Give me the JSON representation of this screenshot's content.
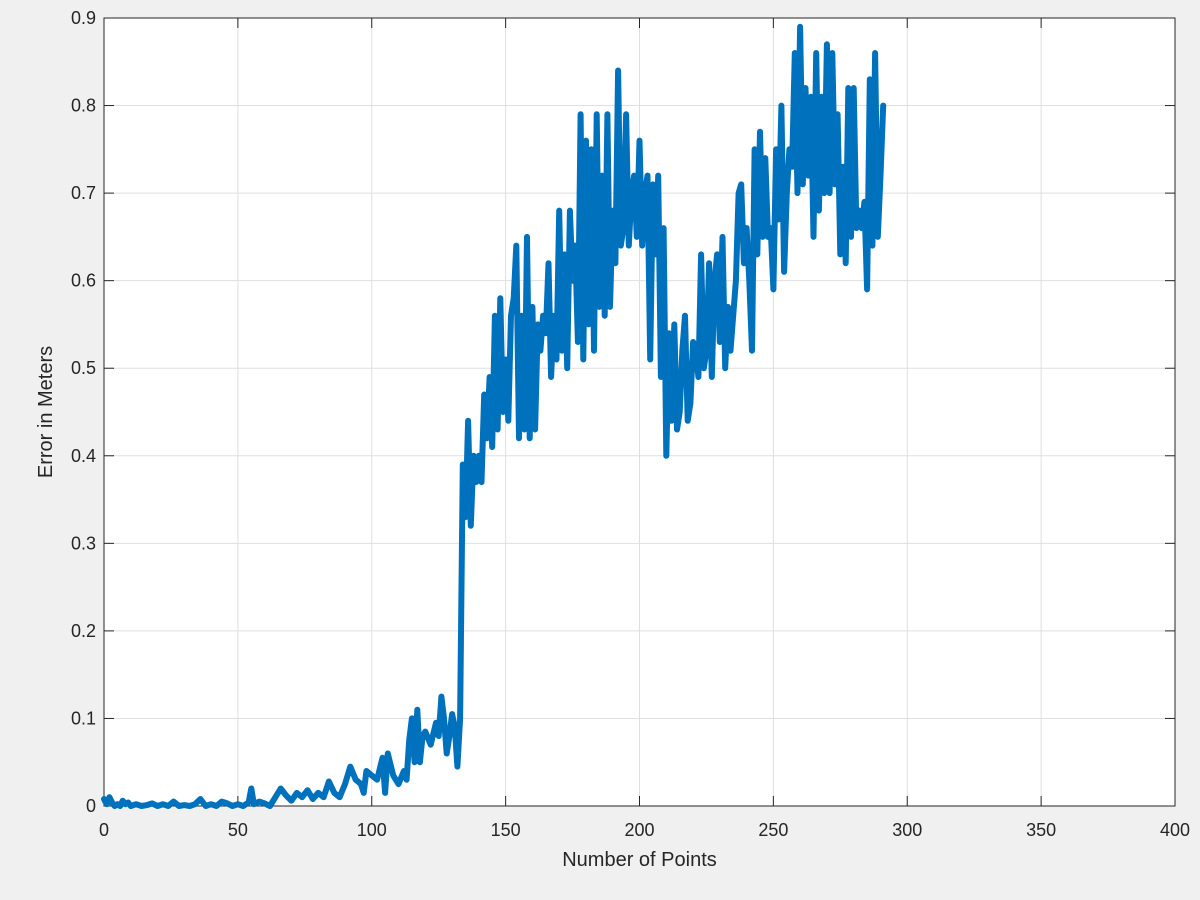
{
  "chart_data": {
    "type": "line",
    "title": "",
    "xlabel": "Number of Points",
    "ylabel": "Error in Meters",
    "xlim": [
      0,
      400
    ],
    "ylim": [
      0,
      0.9
    ],
    "x_ticks": [
      0,
      50,
      100,
      150,
      200,
      250,
      300,
      350,
      400
    ],
    "y_ticks": [
      0,
      0.1,
      0.2,
      0.3,
      0.4,
      0.5,
      0.6,
      0.7,
      0.8,
      0.9
    ],
    "x_tick_labels": [
      "0",
      "50",
      "100",
      "150",
      "200",
      "250",
      "300",
      "350",
      "400"
    ],
    "y_tick_labels": [
      "0",
      "0.1",
      "0.2",
      "0.3",
      "0.4",
      "0.5",
      "0.6",
      "0.7",
      "0.8",
      "0.9"
    ],
    "grid": true,
    "series": [
      {
        "color": "#0072bd",
        "points": [
          [
            0,
            0.008
          ],
          [
            1,
            0.002
          ],
          [
            2,
            0.01
          ],
          [
            3,
            0.004
          ],
          [
            4,
            0.0
          ],
          [
            5,
            0.002
          ],
          [
            6,
            0.0
          ],
          [
            7,
            0.006
          ],
          [
            8,
            0.002
          ],
          [
            9,
            0.004
          ],
          [
            10,
            0.0
          ],
          [
            12,
            0.002
          ],
          [
            14,
            0.0
          ],
          [
            16,
            0.001
          ],
          [
            18,
            0.003
          ],
          [
            20,
            0.0
          ],
          [
            22,
            0.002
          ],
          [
            24,
            0.0
          ],
          [
            26,
            0.005
          ],
          [
            28,
            0.0
          ],
          [
            30,
            0.001
          ],
          [
            32,
            0.0
          ],
          [
            34,
            0.002
          ],
          [
            36,
            0.008
          ],
          [
            38,
            0.0
          ],
          [
            40,
            0.002
          ],
          [
            42,
            0.0
          ],
          [
            44,
            0.005
          ],
          [
            46,
            0.003
          ],
          [
            48,
            0.0
          ],
          [
            50,
            0.002
          ],
          [
            52,
            0.0
          ],
          [
            54,
            0.004
          ],
          [
            55,
            0.02
          ],
          [
            56,
            0.002
          ],
          [
            58,
            0.005
          ],
          [
            60,
            0.003
          ],
          [
            62,
            0.0
          ],
          [
            64,
            0.01
          ],
          [
            66,
            0.02
          ],
          [
            68,
            0.012
          ],
          [
            70,
            0.006
          ],
          [
            72,
            0.015
          ],
          [
            74,
            0.01
          ],
          [
            76,
            0.018
          ],
          [
            78,
            0.008
          ],
          [
            80,
            0.015
          ],
          [
            82,
            0.01
          ],
          [
            84,
            0.028
          ],
          [
            86,
            0.015
          ],
          [
            88,
            0.01
          ],
          [
            90,
            0.025
          ],
          [
            92,
            0.045
          ],
          [
            94,
            0.03
          ],
          [
            96,
            0.025
          ],
          [
            97,
            0.015
          ],
          [
            98,
            0.04
          ],
          [
            100,
            0.035
          ],
          [
            102,
            0.03
          ],
          [
            104,
            0.055
          ],
          [
            105,
            0.015
          ],
          [
            106,
            0.06
          ],
          [
            108,
            0.035
          ],
          [
            110,
            0.025
          ],
          [
            112,
            0.04
          ],
          [
            113,
            0.03
          ],
          [
            114,
            0.075
          ],
          [
            115,
            0.1
          ],
          [
            116,
            0.05
          ],
          [
            117,
            0.11
          ],
          [
            118,
            0.05
          ],
          [
            119,
            0.08
          ],
          [
            120,
            0.085
          ],
          [
            122,
            0.07
          ],
          [
            124,
            0.095
          ],
          [
            125,
            0.08
          ],
          [
            126,
            0.125
          ],
          [
            127,
            0.1
          ],
          [
            128,
            0.06
          ],
          [
            129,
            0.08
          ],
          [
            130,
            0.105
          ],
          [
            131,
            0.09
          ],
          [
            132,
            0.045
          ],
          [
            133,
            0.1
          ],
          [
            134,
            0.39
          ],
          [
            135,
            0.33
          ],
          [
            136,
            0.44
          ],
          [
            137,
            0.32
          ],
          [
            138,
            0.4
          ],
          [
            139,
            0.37
          ],
          [
            140,
            0.4
          ],
          [
            141,
            0.37
          ],
          [
            142,
            0.47
          ],
          [
            143,
            0.42
          ],
          [
            144,
            0.49
          ],
          [
            145,
            0.41
          ],
          [
            146,
            0.56
          ],
          [
            147,
            0.43
          ],
          [
            148,
            0.58
          ],
          [
            149,
            0.45
          ],
          [
            150,
            0.51
          ],
          [
            151,
            0.44
          ],
          [
            152,
            0.56
          ],
          [
            153,
            0.58
          ],
          [
            154,
            0.64
          ],
          [
            155,
            0.42
          ],
          [
            156,
            0.56
          ],
          [
            157,
            0.43
          ],
          [
            158,
            0.65
          ],
          [
            159,
            0.42
          ],
          [
            160,
            0.57
          ],
          [
            161,
            0.43
          ],
          [
            162,
            0.55
          ],
          [
            163,
            0.52
          ],
          [
            164,
            0.56
          ],
          [
            165,
            0.54
          ],
          [
            166,
            0.62
          ],
          [
            167,
            0.49
          ],
          [
            168,
            0.56
          ],
          [
            169,
            0.51
          ],
          [
            170,
            0.68
          ],
          [
            171,
            0.52
          ],
          [
            172,
            0.63
          ],
          [
            173,
            0.5
          ],
          [
            174,
            0.68
          ],
          [
            175,
            0.6
          ],
          [
            176,
            0.64
          ],
          [
            177,
            0.53
          ],
          [
            178,
            0.79
          ],
          [
            179,
            0.51
          ],
          [
            180,
            0.76
          ],
          [
            181,
            0.55
          ],
          [
            182,
            0.75
          ],
          [
            183,
            0.52
          ],
          [
            184,
            0.79
          ],
          [
            185,
            0.57
          ],
          [
            186,
            0.72
          ],
          [
            187,
            0.56
          ],
          [
            188,
            0.79
          ],
          [
            189,
            0.57
          ],
          [
            190,
            0.68
          ],
          [
            191,
            0.62
          ],
          [
            192,
            0.84
          ],
          [
            193,
            0.64
          ],
          [
            194,
            0.66
          ],
          [
            195,
            0.79
          ],
          [
            196,
            0.64
          ],
          [
            197,
            0.7
          ],
          [
            198,
            0.72
          ],
          [
            199,
            0.65
          ],
          [
            200,
            0.76
          ],
          [
            201,
            0.64
          ],
          [
            202,
            0.7
          ],
          [
            203,
            0.72
          ],
          [
            204,
            0.51
          ],
          [
            205,
            0.71
          ],
          [
            206,
            0.63
          ],
          [
            207,
            0.72
          ],
          [
            208,
            0.49
          ],
          [
            209,
            0.66
          ],
          [
            210,
            0.4
          ],
          [
            211,
            0.54
          ],
          [
            212,
            0.44
          ],
          [
            213,
            0.55
          ],
          [
            214,
            0.43
          ],
          [
            215,
            0.45
          ],
          [
            216,
            0.52
          ],
          [
            217,
            0.56
          ],
          [
            218,
            0.44
          ],
          [
            219,
            0.46
          ],
          [
            220,
            0.53
          ],
          [
            221,
            0.52
          ],
          [
            222,
            0.49
          ],
          [
            223,
            0.63
          ],
          [
            224,
            0.5
          ],
          [
            225,
            0.52
          ],
          [
            226,
            0.62
          ],
          [
            227,
            0.49
          ],
          [
            228,
            0.6
          ],
          [
            229,
            0.63
          ],
          [
            230,
            0.53
          ],
          [
            231,
            0.65
          ],
          [
            232,
            0.5
          ],
          [
            233,
            0.57
          ],
          [
            234,
            0.52
          ],
          [
            235,
            0.56
          ],
          [
            236,
            0.6
          ],
          [
            237,
            0.7
          ],
          [
            238,
            0.71
          ],
          [
            239,
            0.62
          ],
          [
            240,
            0.66
          ],
          [
            241,
            0.6
          ],
          [
            242,
            0.52
          ],
          [
            243,
            0.75
          ],
          [
            244,
            0.63
          ],
          [
            245,
            0.77
          ],
          [
            246,
            0.65
          ],
          [
            247,
            0.74
          ],
          [
            248,
            0.65
          ],
          [
            249,
            0.66
          ],
          [
            250,
            0.59
          ],
          [
            251,
            0.75
          ],
          [
            252,
            0.67
          ],
          [
            253,
            0.8
          ],
          [
            254,
            0.61
          ],
          [
            255,
            0.7
          ],
          [
            256,
            0.75
          ],
          [
            257,
            0.73
          ],
          [
            258,
            0.86
          ],
          [
            259,
            0.7
          ],
          [
            260,
            0.89
          ],
          [
            261,
            0.71
          ],
          [
            262,
            0.82
          ],
          [
            263,
            0.72
          ],
          [
            264,
            0.81
          ],
          [
            265,
            0.65
          ],
          [
            266,
            0.86
          ],
          [
            267,
            0.68
          ],
          [
            268,
            0.81
          ],
          [
            269,
            0.7
          ],
          [
            270,
            0.87
          ],
          [
            271,
            0.7
          ],
          [
            272,
            0.86
          ],
          [
            273,
            0.71
          ],
          [
            274,
            0.79
          ],
          [
            275,
            0.63
          ],
          [
            276,
            0.73
          ],
          [
            277,
            0.62
          ],
          [
            278,
            0.82
          ],
          [
            279,
            0.65
          ],
          [
            280,
            0.82
          ],
          [
            281,
            0.66
          ],
          [
            282,
            0.68
          ],
          [
            283,
            0.66
          ],
          [
            284,
            0.69
          ],
          [
            285,
            0.59
          ],
          [
            286,
            0.83
          ],
          [
            287,
            0.64
          ],
          [
            288,
            0.86
          ],
          [
            289,
            0.65
          ],
          [
            290,
            0.72
          ],
          [
            291,
            0.8
          ]
        ]
      }
    ]
  }
}
